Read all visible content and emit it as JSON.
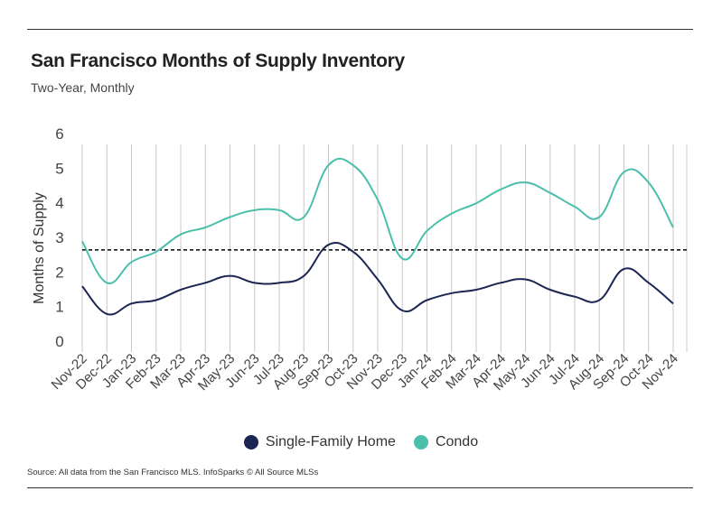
{
  "header": {
    "title": "San Francisco Months of Supply Inventory",
    "subtitle": "Two-Year, Monthly"
  },
  "chart_data": {
    "type": "line",
    "ylabel": "Months of Supply",
    "xlabel": "",
    "ylim": [
      0,
      6
    ],
    "yticks": [
      0,
      1,
      2,
      3,
      4,
      5,
      6
    ],
    "grid": "vertical",
    "legend_position": "bottom-center",
    "reference_line": {
      "value": 2.95,
      "style": "dashed"
    },
    "categories": [
      "Nov-22",
      "Dec-22",
      "Jan-23",
      "Feb-23",
      "Mar-23",
      "Apr-23",
      "May-23",
      "Jun-23",
      "Jul-23",
      "Aug-23",
      "Sep-23",
      "Oct-23",
      "Nov-23",
      "Dec-23",
      "Jan-24",
      "Feb-24",
      "Mar-24",
      "Apr-24",
      "May-24",
      "Jun-24",
      "Jul-24",
      "Aug-24",
      "Sep-24",
      "Oct-24",
      "Nov-24"
    ],
    "series": [
      {
        "name": "Single-Family Home",
        "color": "#1c2653",
        "values": [
          1.9,
          1.1,
          1.4,
          1.5,
          1.8,
          2.0,
          2.2,
          2.0,
          2.0,
          2.2,
          3.1,
          2.9,
          2.1,
          1.2,
          1.5,
          1.7,
          1.8,
          2.0,
          2.1,
          1.8,
          1.6,
          1.5,
          2.4,
          2.0,
          1.4
        ]
      },
      {
        "name": "Condo",
        "color": "#4bbfac",
        "values": [
          3.2,
          2.0,
          2.6,
          2.9,
          3.4,
          3.6,
          3.9,
          4.1,
          4.1,
          3.9,
          5.4,
          5.4,
          4.4,
          2.7,
          3.5,
          4.0,
          4.3,
          4.7,
          4.9,
          4.6,
          4.2,
          3.9,
          5.2,
          4.9,
          3.6
        ]
      }
    ]
  },
  "footer": {
    "source": "Source:  All data from the San Francisco MLS. InfoSparks © All Source MLSs"
  }
}
